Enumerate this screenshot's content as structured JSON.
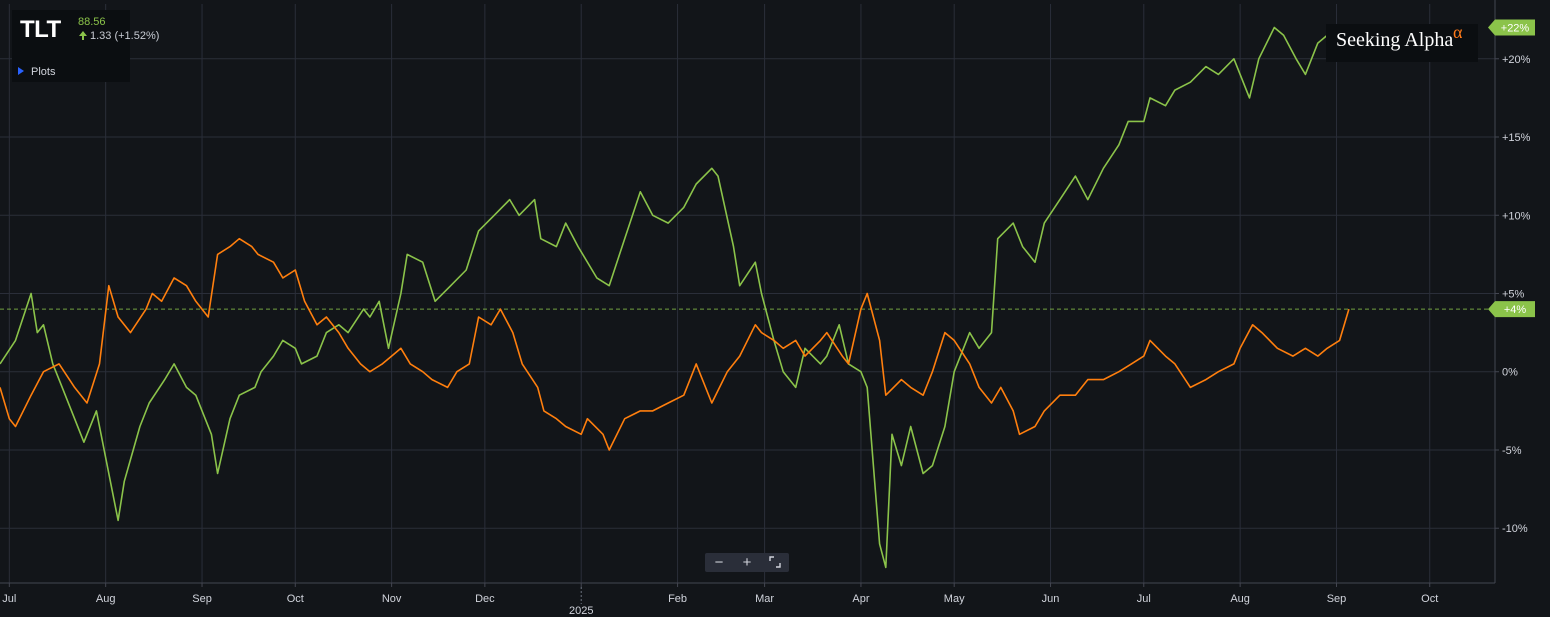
{
  "header": {
    "ticker": "TLT",
    "price": "88.56",
    "change": "1.33 (+1.52%)",
    "plots_label": "Plots"
  },
  "brand": {
    "name": "Seeking Alpha",
    "mark": "α",
    "mark_color": "#ff7a1a"
  },
  "zoom": {
    "minus": "−",
    "plus": "+",
    "reset_icon": "fit-screen-icon"
  },
  "colors": {
    "background": "#121519",
    "green_series": "#8bc34a",
    "orange_series": "#ff7f0e",
    "grid": "#2a2e39",
    "axis": "#d1d4dc"
  },
  "chart_data": {
    "type": "line",
    "x_unit": "date",
    "xlim": [
      "2024-06-28",
      "2025-10-22"
    ],
    "ylim": [
      -13.5,
      23.5
    ],
    "y_ticks": [
      -10,
      -5,
      0,
      5,
      10,
      15,
      20
    ],
    "y_tick_labels": [
      "-10%",
      "-5%",
      "0%",
      "+5%",
      "+10%",
      "+15%",
      "+20%"
    ],
    "x_ticks": [
      "2024-07-01",
      "2024-08-01",
      "2024-09-01",
      "2024-10-01",
      "2024-11-01",
      "2024-12-01",
      "2025-01-01",
      "2025-02-01",
      "2025-03-01",
      "2025-04-01",
      "2025-05-01",
      "2025-06-01",
      "2025-07-01",
      "2025-08-01",
      "2025-09-01",
      "2025-10-01"
    ],
    "x_tick_labels": [
      "Jul",
      "Aug",
      "Sep",
      "Oct",
      "Nov",
      "Dec",
      "2025",
      "Feb",
      "Mar",
      "Apr",
      "May",
      "Jun",
      "Jul",
      "Aug",
      "Sep",
      "Oct"
    ],
    "reference_line": {
      "value": 4,
      "label": "+4%"
    },
    "series": [
      {
        "color": "#8bc34a",
        "last_label": "+22%",
        "points": [
          [
            "2024-06-28",
            0.5
          ],
          [
            "2024-07-03",
            2.0
          ],
          [
            "2024-07-08",
            5.0
          ],
          [
            "2024-07-10",
            2.5
          ],
          [
            "2024-07-12",
            3.0
          ],
          [
            "2024-07-15",
            0.5
          ],
          [
            "2024-07-18",
            -1.0
          ],
          [
            "2024-07-22",
            -3.0
          ],
          [
            "2024-07-25",
            -4.5
          ],
          [
            "2024-07-29",
            -2.5
          ],
          [
            "2024-08-05",
            -9.5
          ],
          [
            "2024-08-07",
            -7.0
          ],
          [
            "2024-08-12",
            -3.5
          ],
          [
            "2024-08-15",
            -2.0
          ],
          [
            "2024-08-20",
            -0.5
          ],
          [
            "2024-08-23",
            0.5
          ],
          [
            "2024-08-27",
            -1.0
          ],
          [
            "2024-08-30",
            -1.5
          ],
          [
            "2024-09-04",
            -4.0
          ],
          [
            "2024-09-06",
            -6.5
          ],
          [
            "2024-09-10",
            -3.0
          ],
          [
            "2024-09-13",
            -1.5
          ],
          [
            "2024-09-18",
            -1.0
          ],
          [
            "2024-09-20",
            0.0
          ],
          [
            "2024-09-24",
            1.0
          ],
          [
            "2024-09-27",
            2.0
          ],
          [
            "2024-10-01",
            1.5
          ],
          [
            "2024-10-03",
            0.5
          ],
          [
            "2024-10-08",
            1.0
          ],
          [
            "2024-10-11",
            2.5
          ],
          [
            "2024-10-15",
            3.0
          ],
          [
            "2024-10-18",
            2.5
          ],
          [
            "2024-10-23",
            4.0
          ],
          [
            "2024-10-25",
            3.5
          ],
          [
            "2024-10-28",
            4.5
          ],
          [
            "2024-10-31",
            1.5
          ],
          [
            "2024-11-04",
            5.0
          ],
          [
            "2024-11-06",
            7.5
          ],
          [
            "2024-11-11",
            7.0
          ],
          [
            "2024-11-15",
            4.5
          ],
          [
            "2024-11-20",
            5.5
          ],
          [
            "2024-11-25",
            6.5
          ],
          [
            "2024-11-29",
            9.0
          ],
          [
            "2024-12-04",
            10.0
          ],
          [
            "2024-12-09",
            11.0
          ],
          [
            "2024-12-12",
            10.0
          ],
          [
            "2024-12-17",
            11.0
          ],
          [
            "2024-12-19",
            8.5
          ],
          [
            "2024-12-24",
            8.0
          ],
          [
            "2024-12-27",
            9.5
          ],
          [
            "2024-12-31",
            8.0
          ],
          [
            "2025-01-06",
            6.0
          ],
          [
            "2025-01-10",
            5.5
          ],
          [
            "2025-01-15",
            8.5
          ],
          [
            "2025-01-20",
            11.5
          ],
          [
            "2025-01-24",
            10.0
          ],
          [
            "2025-01-29",
            9.5
          ],
          [
            "2025-02-03",
            10.5
          ],
          [
            "2025-02-07",
            12.0
          ],
          [
            "2025-02-12",
            13.0
          ],
          [
            "2025-02-14",
            12.5
          ],
          [
            "2025-02-19",
            8.0
          ],
          [
            "2025-02-21",
            5.5
          ],
          [
            "2025-02-26",
            7.0
          ],
          [
            "2025-02-28",
            5.0
          ],
          [
            "2025-03-04",
            2.0
          ],
          [
            "2025-03-07",
            0.0
          ],
          [
            "2025-03-11",
            -1.0
          ],
          [
            "2025-03-14",
            1.5
          ],
          [
            "2025-03-19",
            0.5
          ],
          [
            "2025-03-21",
            1.0
          ],
          [
            "2025-03-25",
            3.0
          ],
          [
            "2025-03-28",
            0.5
          ],
          [
            "2025-04-01",
            0.0
          ],
          [
            "2025-04-03",
            -1.0
          ],
          [
            "2025-04-07",
            -11.0
          ],
          [
            "2025-04-09",
            -12.5
          ],
          [
            "2025-04-11",
            -4.0
          ],
          [
            "2025-04-14",
            -6.0
          ],
          [
            "2025-04-17",
            -3.5
          ],
          [
            "2025-04-21",
            -6.5
          ],
          [
            "2025-04-24",
            -6.0
          ],
          [
            "2025-04-28",
            -3.5
          ],
          [
            "2025-05-01",
            0.0
          ],
          [
            "2025-05-06",
            2.5
          ],
          [
            "2025-05-09",
            1.5
          ],
          [
            "2025-05-13",
            2.5
          ],
          [
            "2025-05-15",
            8.5
          ],
          [
            "2025-05-20",
            9.5
          ],
          [
            "2025-05-23",
            8.0
          ],
          [
            "2025-05-27",
            7.0
          ],
          [
            "2025-05-30",
            9.5
          ],
          [
            "2025-06-04",
            11.0
          ],
          [
            "2025-06-09",
            12.5
          ],
          [
            "2025-06-13",
            11.0
          ],
          [
            "2025-06-18",
            13.0
          ],
          [
            "2025-06-23",
            14.5
          ],
          [
            "2025-06-26",
            16.0
          ],
          [
            "2025-07-01",
            16.0
          ],
          [
            "2025-07-03",
            17.5
          ],
          [
            "2025-07-08",
            17.0
          ],
          [
            "2025-07-11",
            18.0
          ],
          [
            "2025-07-16",
            18.5
          ],
          [
            "2025-07-21",
            19.5
          ],
          [
            "2025-07-25",
            19.0
          ],
          [
            "2025-07-30",
            20.0
          ],
          [
            "2025-08-04",
            17.5
          ],
          [
            "2025-08-07",
            20.0
          ],
          [
            "2025-08-12",
            22.0
          ],
          [
            "2025-08-15",
            21.5
          ],
          [
            "2025-08-19",
            20.0
          ],
          [
            "2025-08-22",
            19.0
          ],
          [
            "2025-08-26",
            21.0
          ],
          [
            "2025-08-29",
            21.5
          ],
          [
            "2025-09-02",
            20.5
          ],
          [
            "2025-09-05",
            22.0
          ]
        ]
      },
      {
        "color": "#ff7f0e",
        "last_label": "+4%",
        "points": [
          [
            "2024-06-28",
            -1.0
          ],
          [
            "2024-07-01",
            -3.0
          ],
          [
            "2024-07-03",
            -3.5
          ],
          [
            "2024-07-08",
            -1.5
          ],
          [
            "2024-07-12",
            0.0
          ],
          [
            "2024-07-17",
            0.5
          ],
          [
            "2024-07-22",
            -1.0
          ],
          [
            "2024-07-26",
            -2.0
          ],
          [
            "2024-07-30",
            0.5
          ],
          [
            "2024-08-02",
            5.5
          ],
          [
            "2024-08-05",
            3.5
          ],
          [
            "2024-08-09",
            2.5
          ],
          [
            "2024-08-14",
            4.0
          ],
          [
            "2024-08-16",
            5.0
          ],
          [
            "2024-08-19",
            4.5
          ],
          [
            "2024-08-23",
            6.0
          ],
          [
            "2024-08-27",
            5.5
          ],
          [
            "2024-08-30",
            4.5
          ],
          [
            "2024-09-03",
            3.5
          ],
          [
            "2024-09-06",
            7.5
          ],
          [
            "2024-09-10",
            8.0
          ],
          [
            "2024-09-13",
            8.5
          ],
          [
            "2024-09-17",
            8.0
          ],
          [
            "2024-09-19",
            7.5
          ],
          [
            "2024-09-24",
            7.0
          ],
          [
            "2024-09-27",
            6.0
          ],
          [
            "2024-10-01",
            6.5
          ],
          [
            "2024-10-04",
            4.5
          ],
          [
            "2024-10-08",
            3.0
          ],
          [
            "2024-10-11",
            3.5
          ],
          [
            "2024-10-15",
            2.5
          ],
          [
            "2024-10-18",
            1.5
          ],
          [
            "2024-10-22",
            0.5
          ],
          [
            "2024-10-25",
            0.0
          ],
          [
            "2024-10-29",
            0.5
          ],
          [
            "2024-11-01",
            1.0
          ],
          [
            "2024-11-04",
            1.5
          ],
          [
            "2024-11-07",
            0.5
          ],
          [
            "2024-11-11",
            0.0
          ],
          [
            "2024-11-14",
            -0.5
          ],
          [
            "2024-11-19",
            -1.0
          ],
          [
            "2024-11-22",
            0.0
          ],
          [
            "2024-11-26",
            0.5
          ],
          [
            "2024-11-29",
            3.5
          ],
          [
            "2024-12-03",
            3.0
          ],
          [
            "2024-12-06",
            4.0
          ],
          [
            "2024-12-10",
            2.5
          ],
          [
            "2024-12-13",
            0.5
          ],
          [
            "2024-12-18",
            -1.0
          ],
          [
            "2024-12-20",
            -2.5
          ],
          [
            "2024-12-24",
            -3.0
          ],
          [
            "2024-12-27",
            -3.5
          ],
          [
            "2025-01-01",
            -4.0
          ],
          [
            "2025-01-03",
            -3.0
          ],
          [
            "2025-01-08",
            -4.0
          ],
          [
            "2025-01-10",
            -5.0
          ],
          [
            "2025-01-15",
            -3.0
          ],
          [
            "2025-01-20",
            -2.5
          ],
          [
            "2025-01-24",
            -2.5
          ],
          [
            "2025-01-29",
            -2.0
          ],
          [
            "2025-02-03",
            -1.5
          ],
          [
            "2025-02-07",
            0.5
          ],
          [
            "2025-02-12",
            -2.0
          ],
          [
            "2025-02-17",
            0.0
          ],
          [
            "2025-02-21",
            1.0
          ],
          [
            "2025-02-26",
            3.0
          ],
          [
            "2025-02-28",
            2.5
          ],
          [
            "2025-03-04",
            2.0
          ],
          [
            "2025-03-07",
            1.5
          ],
          [
            "2025-03-11",
            2.0
          ],
          [
            "2025-03-14",
            1.0
          ],
          [
            "2025-03-19",
            2.0
          ],
          [
            "2025-03-21",
            2.5
          ],
          [
            "2025-03-26",
            1.0
          ],
          [
            "2025-03-28",
            0.5
          ],
          [
            "2025-04-01",
            4.0
          ],
          [
            "2025-04-03",
            5.0
          ],
          [
            "2025-04-07",
            2.0
          ],
          [
            "2025-04-09",
            -1.5
          ],
          [
            "2025-04-14",
            -0.5
          ],
          [
            "2025-04-17",
            -1.0
          ],
          [
            "2025-04-21",
            -1.5
          ],
          [
            "2025-04-24",
            0.0
          ],
          [
            "2025-04-28",
            2.5
          ],
          [
            "2025-05-01",
            2.0
          ],
          [
            "2025-05-06",
            0.5
          ],
          [
            "2025-05-09",
            -1.0
          ],
          [
            "2025-05-13",
            -2.0
          ],
          [
            "2025-05-16",
            -1.0
          ],
          [
            "2025-05-20",
            -2.5
          ],
          [
            "2025-05-22",
            -4.0
          ],
          [
            "2025-05-27",
            -3.5
          ],
          [
            "2025-05-30",
            -2.5
          ],
          [
            "2025-06-04",
            -1.5
          ],
          [
            "2025-06-09",
            -1.5
          ],
          [
            "2025-06-13",
            -0.5
          ],
          [
            "2025-06-18",
            -0.5
          ],
          [
            "2025-06-23",
            0.0
          ],
          [
            "2025-06-27",
            0.5
          ],
          [
            "2025-07-01",
            1.0
          ],
          [
            "2025-07-03",
            2.0
          ],
          [
            "2025-07-08",
            1.0
          ],
          [
            "2025-07-11",
            0.5
          ],
          [
            "2025-07-16",
            -1.0
          ],
          [
            "2025-07-21",
            -0.5
          ],
          [
            "2025-07-25",
            0.0
          ],
          [
            "2025-07-30",
            0.5
          ],
          [
            "2025-08-01",
            1.5
          ],
          [
            "2025-08-05",
            3.0
          ],
          [
            "2025-08-08",
            2.5
          ],
          [
            "2025-08-13",
            1.5
          ],
          [
            "2025-08-18",
            1.0
          ],
          [
            "2025-08-22",
            1.5
          ],
          [
            "2025-08-26",
            1.0
          ],
          [
            "2025-08-29",
            1.5
          ],
          [
            "2025-09-02",
            2.0
          ],
          [
            "2025-09-05",
            4.0
          ]
        ]
      }
    ]
  }
}
